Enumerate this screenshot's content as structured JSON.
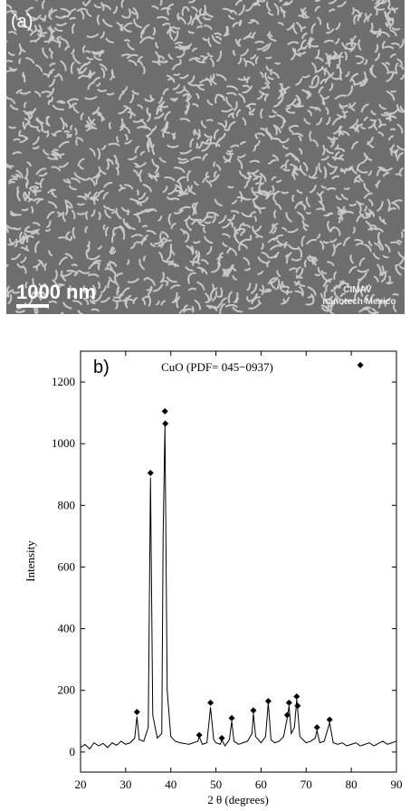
{
  "image": {
    "panel_label": "(a)",
    "scale_bar": "1000 nm",
    "watermark": [
      "CIMAV",
      "nanotech Mexico"
    ]
  },
  "chart_data": {
    "type": "line",
    "panel_label": "b)",
    "x_label": "2 θ (degrees)",
    "y_label": "Intensity",
    "xlim": [
      20,
      90
    ],
    "ylim": [
      -65,
      1300
    ],
    "xticks": [
      20,
      30,
      40,
      50,
      60,
      70,
      80,
      90
    ],
    "yticks": [
      0,
      200,
      400,
      600,
      800,
      1000,
      1200
    ],
    "series": [
      {
        "type": "line",
        "color": "#000000",
        "x": [
          20,
          21,
          22,
          23,
          24,
          25,
          26,
          27,
          28,
          29,
          30,
          31,
          32,
          32.5,
          33,
          34,
          35,
          35.5,
          36,
          37,
          38,
          38.3,
          38.7,
          39.2,
          40,
          41,
          42,
          43,
          44,
          45,
          46,
          46.3,
          47,
          48,
          48.8,
          49.5,
          50,
          51,
          51.3,
          52,
          53,
          53.5,
          54,
          55,
          56,
          57,
          58,
          58.3,
          58.8,
          60,
          61,
          61.6,
          62.2,
          63,
          64,
          65,
          65.8,
          66.2,
          66.7,
          67.4,
          67.9,
          68.1,
          68.6,
          70,
          71,
          72,
          72.4,
          73,
          74,
          75.2,
          76,
          77,
          78,
          79,
          80,
          81,
          82,
          83,
          84,
          85,
          86,
          87,
          88,
          89,
          90
        ],
        "values": [
          15,
          25,
          10,
          30,
          20,
          28,
          15,
          30,
          22,
          35,
          25,
          30,
          45,
          115,
          40,
          35,
          80,
          890,
          120,
          45,
          60,
          700,
          1060,
          200,
          50,
          35,
          30,
          28,
          25,
          30,
          35,
          50,
          25,
          30,
          145,
          40,
          30,
          25,
          40,
          20,
          40,
          100,
          35,
          25,
          30,
          35,
          60,
          125,
          50,
          30,
          50,
          160,
          40,
          30,
          35,
          50,
          110,
          150,
          60,
          80,
          170,
          140,
          50,
          30,
          35,
          45,
          70,
          30,
          35,
          95,
          30,
          25,
          30,
          20,
          25,
          30,
          20,
          25,
          30,
          20,
          28,
          35,
          25,
          30,
          35
        ]
      },
      {
        "type": "scatter",
        "name": "CuO (PDF= 045−0937)",
        "marker": "diamond",
        "color": "#000000",
        "x": [
          32.5,
          35.5,
          38.7,
          38.8,
          46.3,
          48.8,
          51.3,
          53.5,
          58.3,
          61.6,
          65.8,
          66.2,
          67.9,
          68.1,
          72.4,
          75.2
        ],
        "values": [
          130,
          905,
          1105,
          1065,
          55,
          160,
          45,
          110,
          135,
          165,
          120,
          160,
          180,
          150,
          80,
          105
        ],
        "legend_x": 82,
        "legend_y": 1255
      }
    ]
  }
}
